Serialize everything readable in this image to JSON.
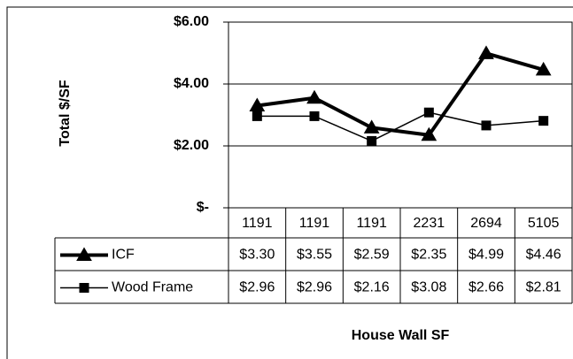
{
  "chart_data": {
    "type": "line",
    "y_label": "Total $/SF",
    "x_label": "House Wall SF",
    "categories": [
      "1191",
      "1191",
      "1191",
      "2231",
      "2694",
      "5105"
    ],
    "series": [
      {
        "name": "ICF",
        "color": "#000000",
        "marker": "triangle",
        "values": [
          3.3,
          3.55,
          2.59,
          2.35,
          4.99,
          4.46
        ],
        "value_labels": [
          "$3.30",
          "$3.55",
          "$2.59",
          "$2.35",
          "$4.99",
          "$4.46"
        ]
      },
      {
        "name": "Wood Frame",
        "color": "#000000",
        "marker": "square",
        "values": [
          2.96,
          2.96,
          2.16,
          3.08,
          2.66,
          2.81
        ],
        "value_labels": [
          "$2.96",
          "$2.96",
          "$2.16",
          "$3.08",
          "$2.66",
          "$2.81"
        ]
      }
    ],
    "ylim": [
      0,
      6
    ],
    "yticks": [
      {
        "value": 0,
        "label": "$-"
      },
      {
        "value": 2,
        "label": "$2.00"
      },
      {
        "value": 4,
        "label": "$4.00"
      },
      {
        "value": 6,
        "label": "$6.00"
      }
    ],
    "grid": true
  }
}
